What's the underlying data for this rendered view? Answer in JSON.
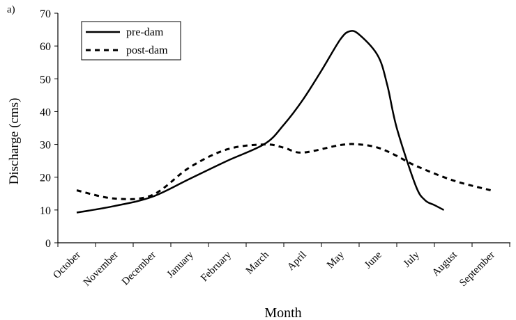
{
  "panel_label": "a)",
  "chart_data": {
    "type": "line",
    "title": "",
    "xlabel": "Month",
    "ylabel": "Discharge (cms)",
    "ylim": [
      0,
      70
    ],
    "yticks": [
      0,
      10,
      20,
      30,
      40,
      50,
      60,
      70
    ],
    "grid": false,
    "legend": "top-left",
    "categories": [
      "October",
      "November",
      "December",
      "January",
      "February",
      "March",
      "April",
      "May",
      "June",
      "July",
      "August",
      "September"
    ],
    "series": [
      {
        "name": "pre-dam",
        "style": "solid",
        "color": "#000000",
        "points": [
          [
            0,
            9.2
          ],
          [
            1,
            11.2
          ],
          [
            2,
            14
          ],
          [
            3,
            19.5
          ],
          [
            4,
            25
          ],
          [
            5,
            30.2
          ],
          [
            5.5,
            36
          ],
          [
            6,
            43.5
          ],
          [
            6.5,
            52.5
          ],
          [
            7,
            62
          ],
          [
            7.25,
            64.5
          ],
          [
            7.5,
            63.5
          ],
          [
            8,
            57
          ],
          [
            8.25,
            48
          ],
          [
            8.5,
            35
          ],
          [
            9,
            17.5
          ],
          [
            9.25,
            13
          ],
          [
            9.5,
            11.5
          ],
          [
            9.75,
            10
          ]
        ]
      },
      {
        "name": "post-dam",
        "style": "dashed",
        "color": "#000000",
        "points": [
          [
            0,
            16
          ],
          [
            1,
            13.5
          ],
          [
            2,
            14.5
          ],
          [
            3,
            23
          ],
          [
            4,
            28.5
          ],
          [
            5,
            30
          ],
          [
            5.5,
            29
          ],
          [
            6,
            27.5
          ],
          [
            7,
            29.8
          ],
          [
            7.5,
            30
          ],
          [
            8,
            29
          ],
          [
            8.5,
            26.5
          ],
          [
            9,
            23.5
          ],
          [
            10,
            19
          ],
          [
            11,
            16
          ]
        ]
      }
    ]
  }
}
